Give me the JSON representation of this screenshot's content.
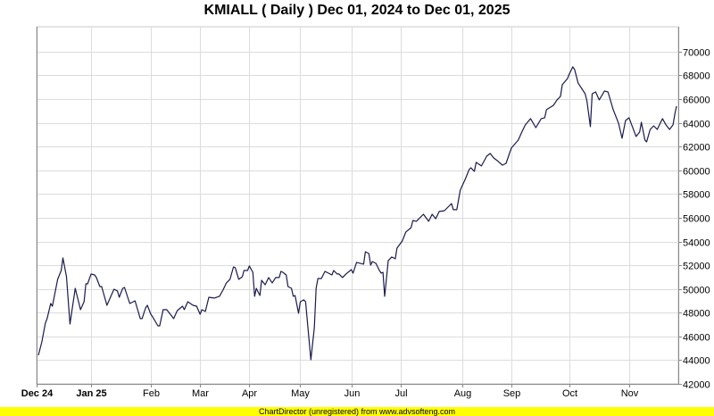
{
  "chart_data": {
    "type": "line",
    "title": "KMIALL ( Daily ) Dec 01, 2024 to Dec 01, 2025",
    "xlabel": "",
    "ylabel": "",
    "x_units": "days since Dec 01, 2024",
    "xlim": [
      0,
      365
    ],
    "ylim": [
      42000,
      72100
    ],
    "grid": true,
    "y_ticks": [
      42000,
      44000,
      46000,
      48000,
      50000,
      52000,
      54000,
      56000,
      58000,
      60000,
      62000,
      64000,
      66000,
      68000,
      70000
    ],
    "x_ticks": [
      {
        "label": "Dec 24",
        "day": 0,
        "bold": true
      },
      {
        "label": "Jan 25",
        "day": 31,
        "bold": true
      },
      {
        "label": "Feb",
        "day": 65,
        "bold": false
      },
      {
        "label": "Mar",
        "day": 93,
        "bold": false
      },
      {
        "label": "Apr",
        "day": 121,
        "bold": false
      },
      {
        "label": "May",
        "day": 150,
        "bold": false
      },
      {
        "label": "Jun",
        "day": 179,
        "bold": false
      },
      {
        "label": "Jul",
        "day": 207,
        "bold": false
      },
      {
        "label": "Aug",
        "day": 242,
        "bold": false
      },
      {
        "label": "Sep",
        "day": 270,
        "bold": false
      },
      {
        "label": "Oct",
        "day": 303,
        "bold": false
      },
      {
        "label": "Nov",
        "day": 337,
        "bold": false
      }
    ],
    "series": [
      {
        "name": "KMIALL",
        "color": "#1a1a4e",
        "points": [
          [
            1,
            44410
          ],
          [
            3,
            45540
          ],
          [
            5,
            47120
          ],
          [
            6,
            47500
          ],
          [
            8,
            48770
          ],
          [
            9,
            48550
          ],
          [
            12,
            50810
          ],
          [
            14,
            51560
          ],
          [
            15,
            52610
          ],
          [
            17,
            51030
          ],
          [
            19,
            47040
          ],
          [
            22,
            50050
          ],
          [
            25,
            48250
          ],
          [
            27,
            48920
          ],
          [
            28,
            50430
          ],
          [
            29,
            50430
          ],
          [
            31,
            51260
          ],
          [
            33,
            51180
          ],
          [
            34,
            50960
          ],
          [
            36,
            50200
          ],
          [
            37,
            50200
          ],
          [
            40,
            48620
          ],
          [
            44,
            49980
          ],
          [
            46,
            49830
          ],
          [
            47,
            49300
          ],
          [
            49,
            50050
          ],
          [
            50,
            50130
          ],
          [
            53,
            48770
          ],
          [
            56,
            49000
          ],
          [
            59,
            47500
          ],
          [
            60,
            47500
          ],
          [
            62,
            48400
          ],
          [
            63,
            48620
          ],
          [
            65,
            47870
          ],
          [
            66,
            47650
          ],
          [
            69,
            46890
          ],
          [
            70,
            46890
          ],
          [
            72,
            48250
          ],
          [
            74,
            48250
          ],
          [
            78,
            47500
          ],
          [
            80,
            48170
          ],
          [
            83,
            48550
          ],
          [
            84,
            48250
          ],
          [
            86,
            48920
          ],
          [
            89,
            48620
          ],
          [
            91,
            48550
          ],
          [
            93,
            47870
          ],
          [
            94,
            48250
          ],
          [
            96,
            48100
          ],
          [
            98,
            49300
          ],
          [
            101,
            49230
          ],
          [
            104,
            49380
          ],
          [
            106,
            49900
          ],
          [
            108,
            50510
          ],
          [
            110,
            50810
          ],
          [
            112,
            51860
          ],
          [
            113,
            51790
          ],
          [
            115,
            50810
          ],
          [
            117,
            51030
          ],
          [
            118,
            51560
          ],
          [
            120,
            51560
          ],
          [
            121,
            51940
          ],
          [
            123,
            51410
          ],
          [
            124,
            49380
          ],
          [
            125,
            50050
          ],
          [
            127,
            49450
          ],
          [
            128,
            50730
          ],
          [
            130,
            50350
          ],
          [
            132,
            50960
          ],
          [
            134,
            50510
          ],
          [
            136,
            50960
          ],
          [
            138,
            50960
          ],
          [
            139,
            51480
          ],
          [
            140,
            51410
          ],
          [
            142,
            51180
          ],
          [
            143,
            50200
          ],
          [
            145,
            50050
          ],
          [
            146,
            49380
          ],
          [
            147,
            49450
          ],
          [
            149,
            47950
          ],
          [
            150,
            48920
          ],
          [
            152,
            49080
          ],
          [
            153,
            48920
          ],
          [
            156,
            44030
          ],
          [
            158,
            46740
          ],
          [
            159,
            50050
          ],
          [
            160,
            50880
          ],
          [
            162,
            50880
          ],
          [
            164,
            51480
          ],
          [
            166,
            51330
          ],
          [
            168,
            51180
          ],
          [
            169,
            51560
          ],
          [
            171,
            51260
          ],
          [
            172,
            51260
          ],
          [
            174,
            50960
          ],
          [
            176,
            51260
          ],
          [
            179,
            51630
          ],
          [
            180,
            51330
          ],
          [
            182,
            52240
          ],
          [
            186,
            52090
          ],
          [
            187,
            53140
          ],
          [
            189,
            52990
          ],
          [
            190,
            52010
          ],
          [
            191,
            52310
          ],
          [
            193,
            52160
          ],
          [
            195,
            51560
          ],
          [
            196,
            51330
          ],
          [
            197,
            51410
          ],
          [
            198,
            49380
          ],
          [
            200,
            52390
          ],
          [
            202,
            52690
          ],
          [
            204,
            52540
          ],
          [
            205,
            53440
          ],
          [
            208,
            54040
          ],
          [
            210,
            54800
          ],
          [
            213,
            55170
          ],
          [
            214,
            55770
          ],
          [
            216,
            55700
          ],
          [
            220,
            56300
          ],
          [
            223,
            55700
          ],
          [
            225,
            56300
          ],
          [
            227,
            55920
          ],
          [
            229,
            56530
          ],
          [
            232,
            56600
          ],
          [
            236,
            57200
          ],
          [
            237,
            56680
          ],
          [
            239,
            56680
          ],
          [
            241,
            58330
          ],
          [
            244,
            59310
          ],
          [
            246,
            60060
          ],
          [
            247,
            60220
          ],
          [
            249,
            59910
          ],
          [
            250,
            60670
          ],
          [
            253,
            60370
          ],
          [
            256,
            61190
          ],
          [
            258,
            61420
          ],
          [
            260,
            61040
          ],
          [
            262,
            60820
          ],
          [
            265,
            60440
          ],
          [
            267,
            60590
          ],
          [
            270,
            61870
          ],
          [
            274,
            62550
          ],
          [
            276,
            63230
          ],
          [
            278,
            63830
          ],
          [
            281,
            64360
          ],
          [
            284,
            63600
          ],
          [
            287,
            64360
          ],
          [
            289,
            64430
          ],
          [
            290,
            65110
          ],
          [
            294,
            65480
          ],
          [
            296,
            65940
          ],
          [
            298,
            66240
          ],
          [
            299,
            67220
          ],
          [
            302,
            67740
          ],
          [
            303,
            68120
          ],
          [
            305,
            68720
          ],
          [
            306,
            68500
          ],
          [
            308,
            67370
          ],
          [
            312,
            66460
          ],
          [
            313,
            65860
          ],
          [
            315,
            63680
          ],
          [
            316,
            66460
          ],
          [
            318,
            66610
          ],
          [
            320,
            65940
          ],
          [
            323,
            66690
          ],
          [
            325,
            66610
          ],
          [
            328,
            65110
          ],
          [
            331,
            63980
          ],
          [
            333,
            62700
          ],
          [
            335,
            64200
          ],
          [
            337,
            64430
          ],
          [
            340,
            63230
          ],
          [
            341,
            62850
          ],
          [
            343,
            63230
          ],
          [
            344,
            64050
          ],
          [
            346,
            62550
          ],
          [
            347,
            62400
          ],
          [
            349,
            63450
          ],
          [
            351,
            63750
          ],
          [
            353,
            63450
          ],
          [
            356,
            64360
          ],
          [
            358,
            63830
          ],
          [
            360,
            63450
          ],
          [
            362,
            63830
          ],
          [
            363,
            64730
          ],
          [
            364,
            65410
          ]
        ]
      }
    ]
  },
  "footer": "ChartDirector (unregistered) from www.advsofteng.com"
}
